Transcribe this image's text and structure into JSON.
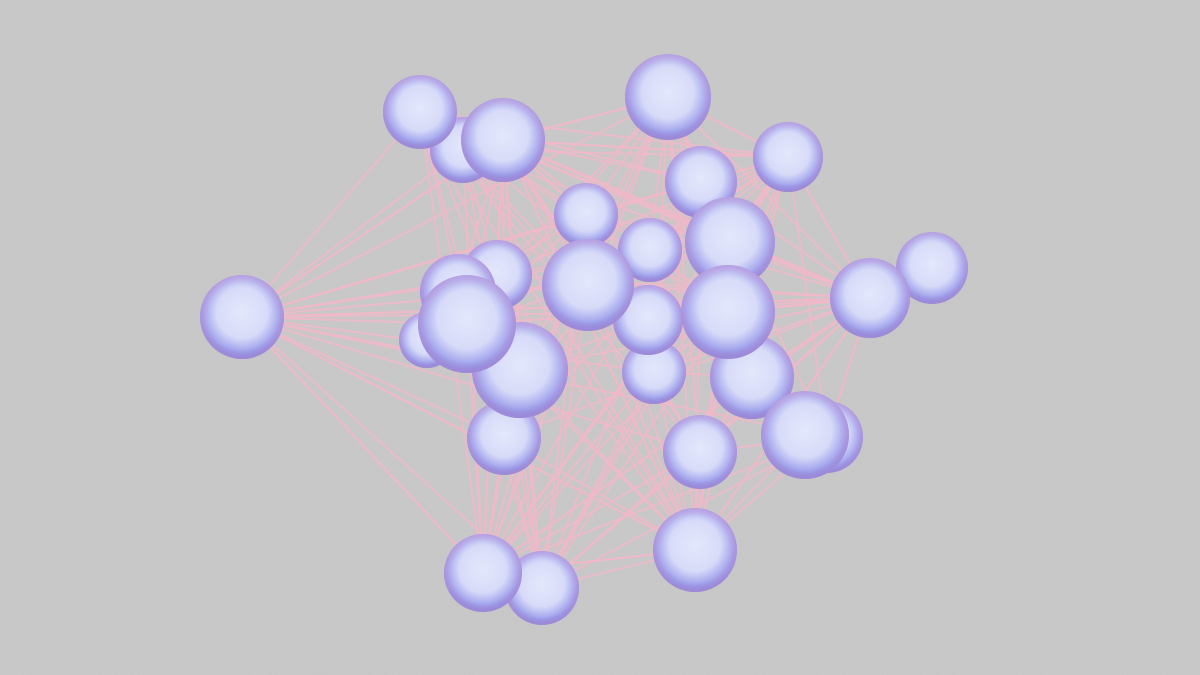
{
  "scene": {
    "background_color": "#c8c8c8",
    "node_fill_center": "#dfe3fb",
    "node_fill_edge": "#6f72d6",
    "node_rim_glow": "#c79ad6",
    "edge_color": "#f0b8c8",
    "node_count": 31
  }
}
